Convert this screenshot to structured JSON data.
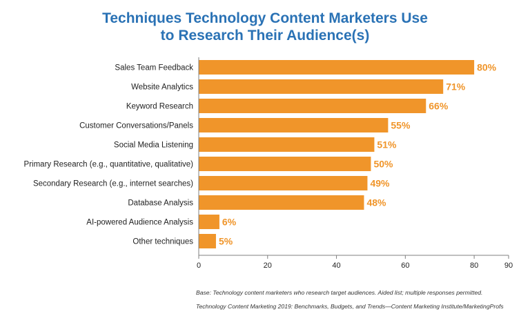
{
  "colors": {
    "title": "#2a72b5",
    "bar": "#f0952a",
    "value_label": "#f0952a",
    "axis": "#7f7f7f",
    "text": "#222222"
  },
  "chart_data": {
    "type": "bar",
    "orientation": "horizontal",
    "title_lines": [
      "Techniques Technology Content Marketers Use",
      "to Research Their Audience(s)"
    ],
    "categories": [
      "Sales Team Feedback",
      "Website Analytics",
      "Keyword Research",
      "Customer Conversations/Panels",
      "Social Media Listening",
      "Primary Research (e.g., quantitative, qualitative)",
      "Secondary Research (e.g., internet searches)",
      "Database Analysis",
      "AI-powered Audience Analysis",
      "Other techniques"
    ],
    "values": [
      80,
      71,
      66,
      55,
      51,
      50,
      49,
      48,
      6,
      5
    ],
    "value_labels": [
      "80%",
      "71%",
      "66%",
      "55%",
      "51%",
      "50%",
      "49%",
      "48%",
      "6%",
      "5%"
    ],
    "xlim": [
      0,
      90
    ],
    "xticks": [
      0,
      20,
      40,
      60,
      80,
      90
    ],
    "xtick_labels": [
      "0",
      "20",
      "40",
      "60",
      "80",
      "90"
    ],
    "grid": false,
    "legend": "none"
  },
  "footnotes": {
    "base": "Base: Technology content marketers who research target audiences. Aided list; multiple responses permitted.",
    "source": "Technology Content Marketing 2019: Benchmarks, Budgets, and Trends—Content Marketing Institute/MarketingProfs"
  }
}
